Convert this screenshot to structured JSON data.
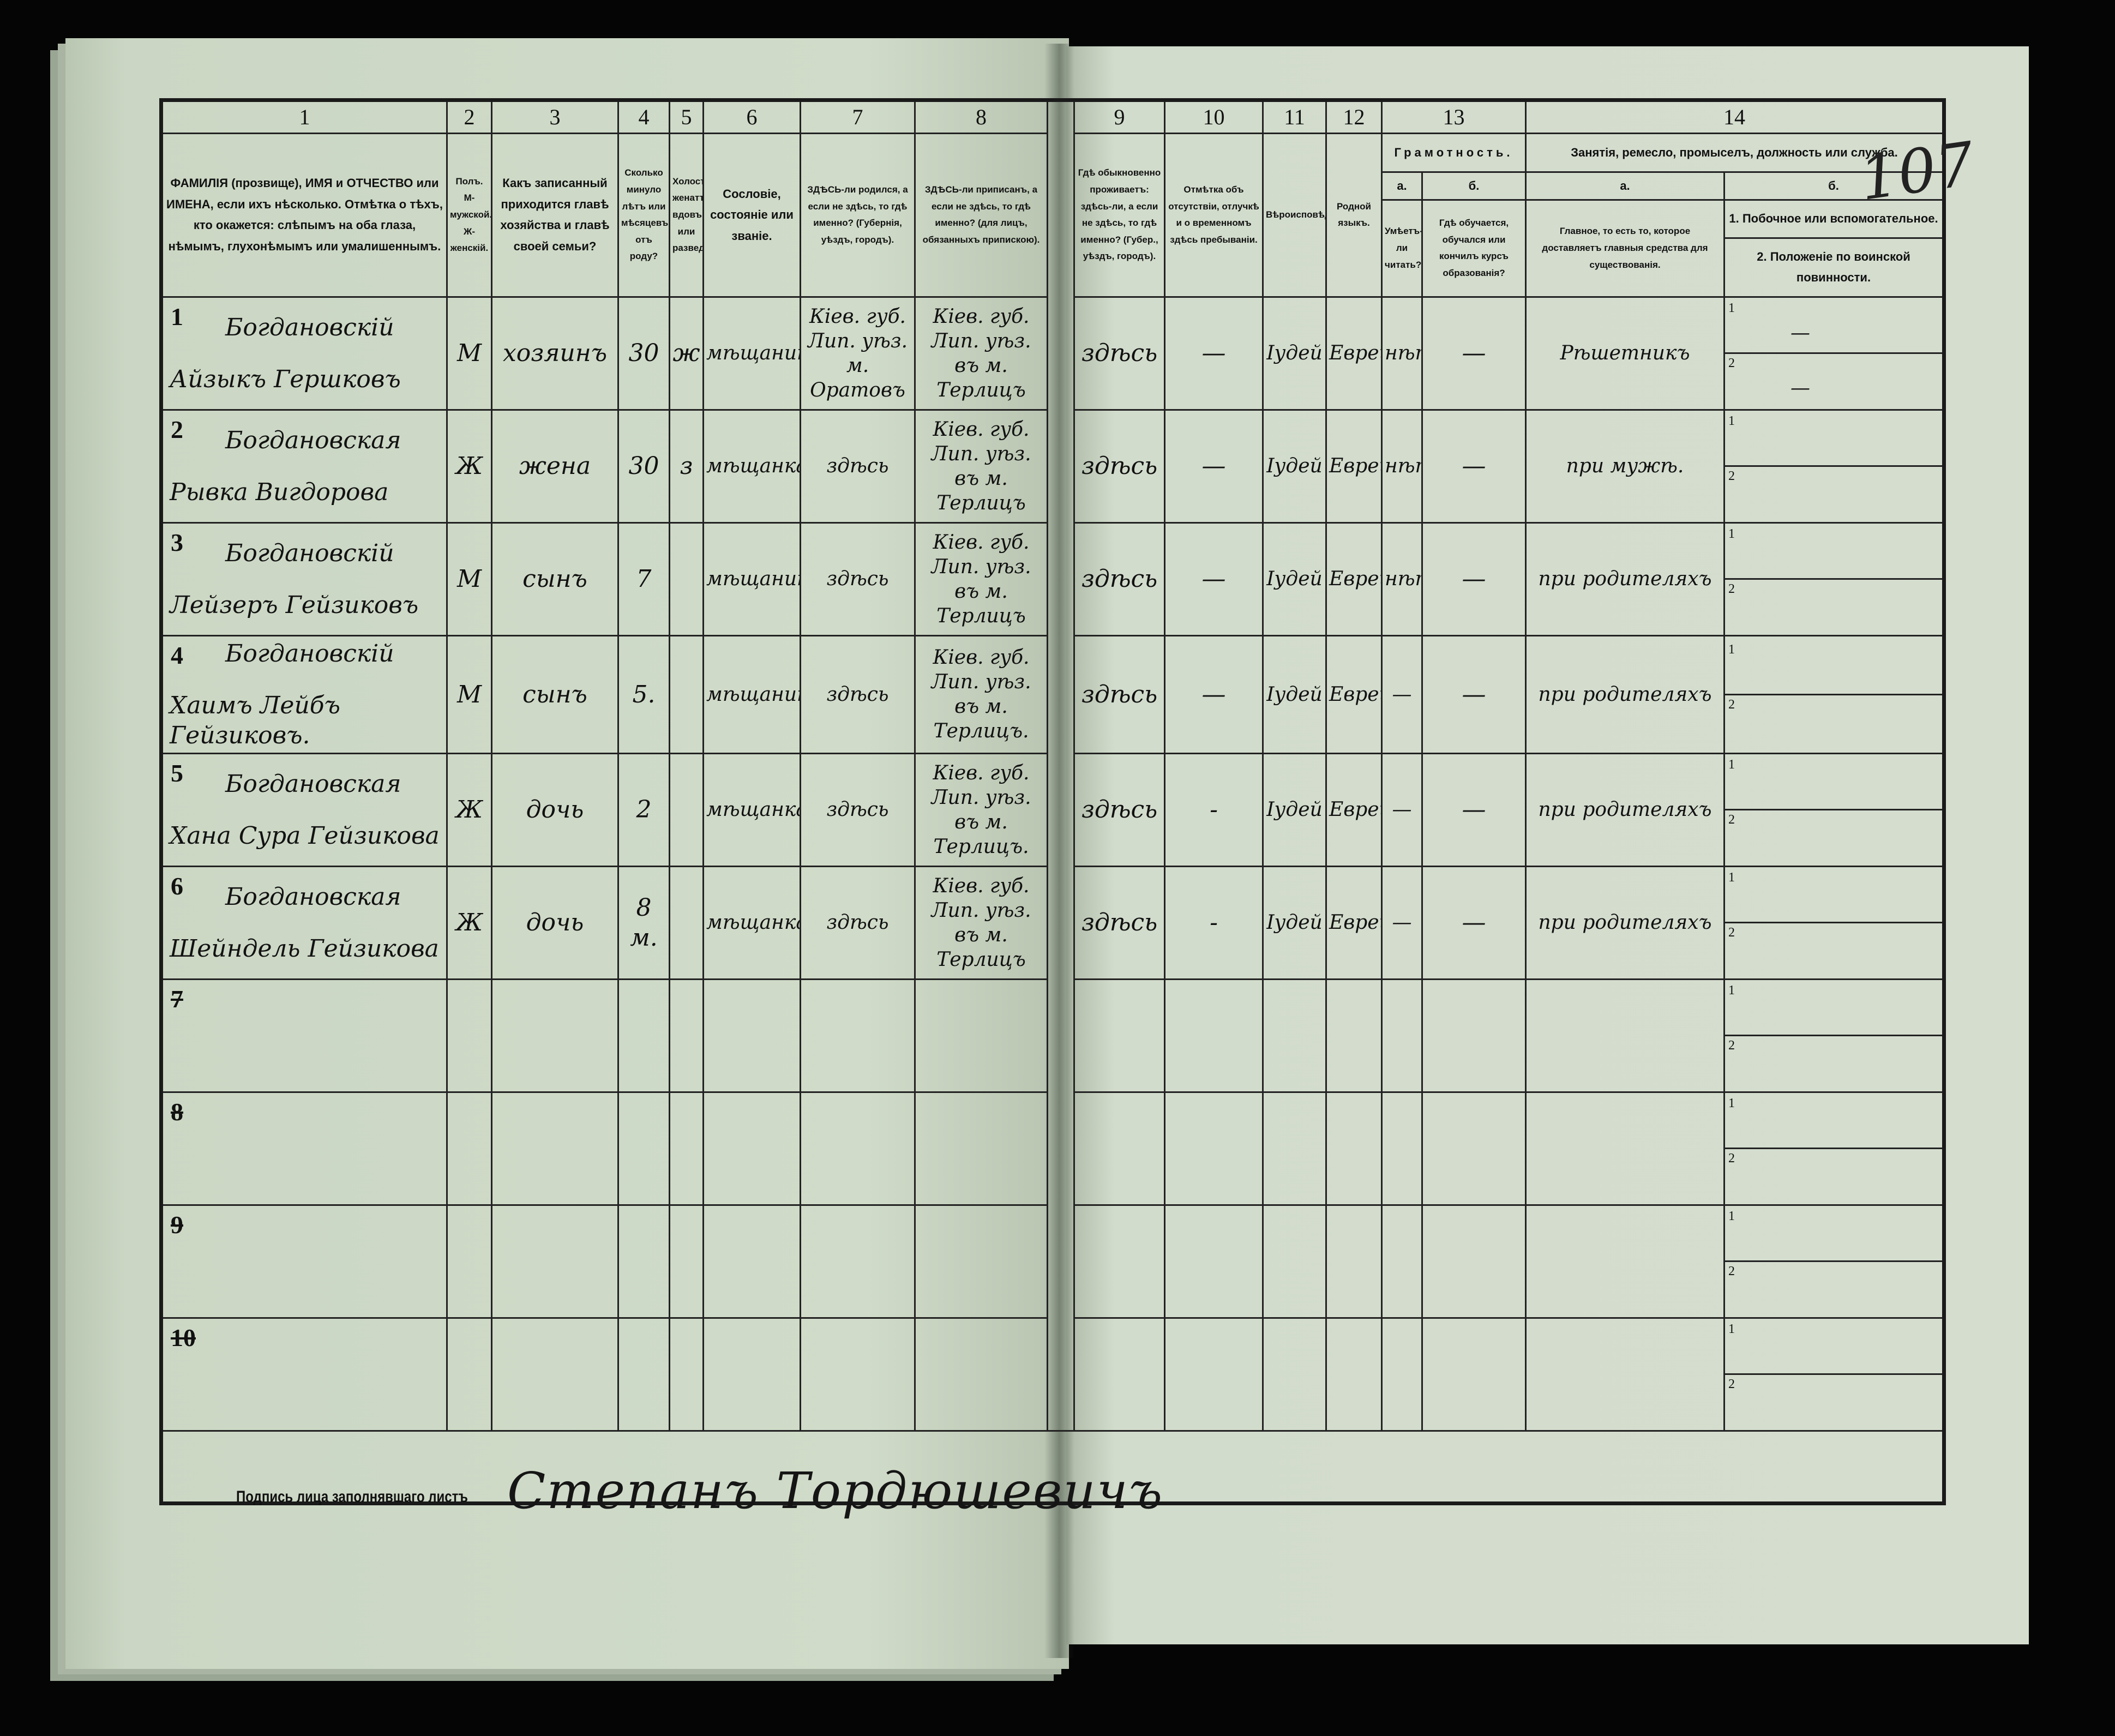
{
  "folio_number": "107",
  "column_numbers": [
    "1",
    "2",
    "3",
    "4",
    "5",
    "6",
    "7",
    "8",
    "9",
    "10",
    "11",
    "12",
    "13",
    "14"
  ],
  "headers": {
    "c1": "ФАМИЛІЯ (прозвище), ИМЯ и ОТЧЕСТВО или ИМЕНА, если ихъ нѣсколько. Отмѣтка о тѣхъ, кто окажется: слѣпымъ на оба глаза, нѣмымъ, глухонѣмымъ или умалишеннымъ.",
    "c2": "Полъ. М-мужской. Ж-женскій.",
    "c3": "Какъ записанный приходится главѣ хозяйства и главѣ своей семьи?",
    "c4": "Сколько минуло лѣтъ или мѣсяцевъ отъ роду?",
    "c5": "Холостъ, женатъ, вдовъ или разведенъ.",
    "c6": "Сословіе, состояніе или званіе.",
    "c7": "ЗДѢСЬ-ли родился, а если не здѣсь, то гдѣ именно? (Губернія, уѣздъ, городъ).",
    "c8": "ЗДѢСЬ-ли приписанъ, а если не здѣсь, то гдѣ именно? (для лицъ, обязанныхъ припискою).",
    "c9": "Гдѣ обыкновенно проживаетъ: здѣсь-ли, а если не здѣсь, то гдѣ именно? (Губер., уѣздъ, городъ).",
    "c10": "Отмѣтка объ отсутствіи, отлучкѣ и о временномъ здѣсь пребываніи.",
    "c11": "Вѣроисповѣданіе.",
    "c12": "Родной языкъ.",
    "c13": "Грамотность.",
    "c13a_letter": "а.",
    "c13b_letter": "б.",
    "c13a": "Умѣетъ-ли читать?",
    "c13b": "Гдѣ обучается, обучался или кончилъ курсъ образованія?",
    "c14": "Занятія, ремесло, промыселъ, должность или служба.",
    "c14a_letter": "а.",
    "c14b_letter": "б.",
    "c14a": "Главное, то есть то, которое доставляетъ главныя средства для существованія.",
    "c14b_1": "1. Побочное или вспомогательное.",
    "c14b_2": "2. Положеніе по воинской повинности."
  },
  "sub_labels": [
    "1",
    "2"
  ],
  "rows": [
    {
      "num": "1",
      "surname": "Богдановскій",
      "given": "Айзыкъ Гершковъ",
      "sex": "М",
      "relation": "хозяинъ",
      "age": "30",
      "marital": "ж",
      "estate": "мѣщанинъ",
      "birthplace": "Кіев. губ. Лип. уѣз. м. Оратовъ",
      "registered": "Кіев. губ. Лип. уѣз. въ м. Терлицъ",
      "residence": "здѣсь",
      "absence": "—",
      "religion": "Іудей",
      "language": "Еврей",
      "reads": "нѣтъ",
      "education": "—",
      "occupation": "Рѣшетникъ",
      "side": "—",
      "military": "—"
    },
    {
      "num": "2",
      "surname": "Богдановская",
      "given": "Рывка Вигдорова",
      "sex": "Ж",
      "relation": "жена",
      "age": "30",
      "marital": "з",
      "estate": "мѣщанка",
      "birthplace": "здѣсь",
      "registered": "Кіев. губ. Лип. уѣз. въ м. Терлицъ",
      "residence": "здѣсь",
      "absence": "—",
      "religion": "Іудей",
      "language": "Еврей",
      "reads": "нѣтъ",
      "education": "—",
      "occupation": "при мужѣ.",
      "side": "",
      "military": ""
    },
    {
      "num": "3",
      "surname": "Богдановскій",
      "given": "Лейзеръ Гейзиковъ",
      "sex": "М",
      "relation": "сынъ",
      "age": "7",
      "marital": "",
      "estate": "мѣщанинъ",
      "birthplace": "здѣсь",
      "registered": "Кіев. губ. Лип. уѣз. въ м. Терлицъ",
      "residence": "здѣсь",
      "absence": "—",
      "religion": "Іудей",
      "language": "Еврей",
      "reads": "нѣтъ",
      "education": "—",
      "occupation": "при родителяхъ",
      "side": "",
      "military": ""
    },
    {
      "num": "4",
      "surname": "Богдановскій",
      "given": "Хаимъ Лейбъ Гейзиковъ.",
      "sex": "М",
      "relation": "сынъ",
      "age": "5.",
      "marital": "",
      "estate": "мѣщанинъ.",
      "birthplace": "здѣсь",
      "registered": "Кіев. губ. Лип. уѣз. въ м. Терлицъ.",
      "residence": "здѣсь",
      "absence": "—",
      "religion": "Іудей",
      "language": "Еврей",
      "reads": "—",
      "education": "—",
      "occupation": "при родителяхъ",
      "side": "",
      "military": ""
    },
    {
      "num": "5",
      "surname": "Богдановская",
      "given": "Хана Сура Гейзикова",
      "sex": "Ж",
      "relation": "дочь",
      "age": "2",
      "marital": "",
      "estate": "мѣщанка",
      "birthplace": "здѣсь",
      "registered": "Кіев. губ. Лип. уѣз. въ м. Терлицъ.",
      "residence": "здѣсь",
      "absence": "-",
      "religion": "Іудей",
      "language": "Еврей",
      "reads": "—",
      "education": "—",
      "occupation": "при родителяхъ",
      "side": "",
      "military": ""
    },
    {
      "num": "6",
      "surname": "Богдановская",
      "given": "Шейндель Гейзикова",
      "sex": "Ж",
      "relation": "дочь",
      "age": "8 м.",
      "marital": "",
      "estate": "мѣщанка",
      "birthplace": "здѣсь",
      "registered": "Кіев. губ. Лип. уѣз. въ м. Терлицъ",
      "residence": "здѣсь",
      "absence": "-",
      "religion": "Іудей",
      "language": "Еврей",
      "reads": "—",
      "education": "—",
      "occupation": "при родителяхъ",
      "side": "",
      "military": ""
    },
    {
      "num": "7"
    },
    {
      "num": "8"
    },
    {
      "num": "9"
    },
    {
      "num": "10"
    }
  ],
  "signature": {
    "label": "Подпись лица заполнявшаго листъ",
    "value": "Степанъ Тордюшевичъ"
  },
  "colors": {
    "background": "#050505",
    "paper_left": "#d0dbc9",
    "paper_right": "#d5ddcf",
    "ink": "#121212"
  }
}
